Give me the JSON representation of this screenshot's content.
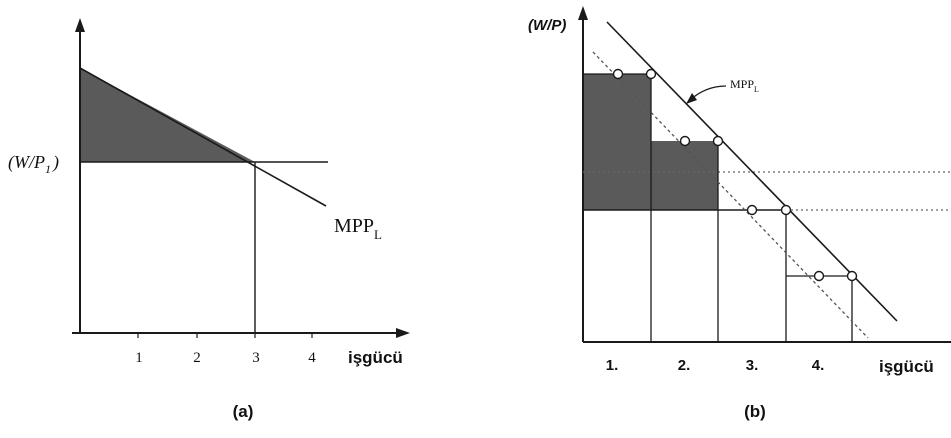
{
  "panel_a": {
    "y_axis_label_main": "(W/P",
    "y_axis_label_sub": "1",
    "y_axis_label_close": ")",
    "x_ticks": [
      "1",
      "2",
      "3",
      "4"
    ],
    "x_axis_label": "işgücü",
    "curve_label_main": "MPP",
    "curve_label_sub": "L",
    "caption": "(a)"
  },
  "panel_b": {
    "y_axis_label": "(W/P)",
    "curve_label_main": "MPP",
    "curve_label_sub": "L",
    "x_ticks": [
      "1.",
      "2.",
      "3.",
      "4."
    ],
    "x_axis_label": "işgücü",
    "caption": "(b)"
  },
  "colors": {
    "line": "#1a1a1a",
    "shade": "#5a5a5a",
    "dotted": "#666666",
    "text": "#111111"
  }
}
